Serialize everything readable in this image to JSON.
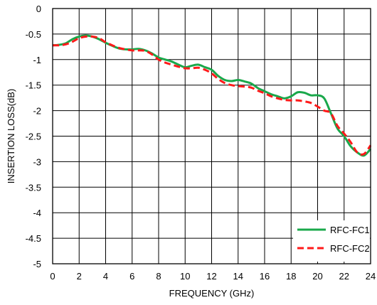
{
  "chart_data": {
    "type": "line",
    "xlabel": "FREQUENCY (GHz)",
    "ylabel": "INSERTION LOSS(dB)",
    "xlim": [
      0,
      24
    ],
    "ylim": [
      -5,
      0
    ],
    "xticks": [
      0,
      2,
      4,
      6,
      8,
      10,
      12,
      14,
      16,
      18,
      20,
      22,
      24
    ],
    "yticks": [
      0,
      -0.5,
      -1,
      -1.5,
      -2,
      -2.5,
      -3,
      -3.5,
      -4,
      -4.5,
      -5
    ],
    "ytick_labels": [
      "0",
      "-0.5",
      "-1",
      "-1.5",
      "-2",
      "-2.5",
      "-3",
      "-3.5",
      "-4",
      "-4.5",
      "-5"
    ],
    "grid": true,
    "legend_position": "bottom-right",
    "series": [
      {
        "name": "RFC-FC1",
        "color": "#1aa84b",
        "style": "solid",
        "x": [
          0,
          0.5,
          1,
          1.5,
          2,
          2.5,
          3,
          3.5,
          4,
          4.5,
          5,
          5.5,
          6,
          6.5,
          7,
          7.5,
          8,
          8.5,
          9,
          9.5,
          10,
          10.5,
          11,
          11.5,
          12,
          12.5,
          13,
          13.5,
          14,
          14.5,
          15,
          15.5,
          16,
          16.5,
          17,
          17.5,
          18,
          18.5,
          19,
          19.5,
          20,
          20.5,
          21,
          21.5,
          22,
          22.5,
          23,
          23.5,
          24
        ],
        "y": [
          -0.72,
          -0.71,
          -0.68,
          -0.6,
          -0.55,
          -0.53,
          -0.55,
          -0.6,
          -0.67,
          -0.73,
          -0.78,
          -0.8,
          -0.8,
          -0.79,
          -0.82,
          -0.88,
          -0.96,
          -1.0,
          -1.04,
          -1.1,
          -1.15,
          -1.12,
          -1.1,
          -1.15,
          -1.2,
          -1.32,
          -1.4,
          -1.42,
          -1.4,
          -1.43,
          -1.47,
          -1.56,
          -1.62,
          -1.68,
          -1.72,
          -1.76,
          -1.72,
          -1.64,
          -1.65,
          -1.7,
          -1.7,
          -1.76,
          -2.05,
          -2.35,
          -2.5,
          -2.7,
          -2.82,
          -2.88,
          -2.75
        ]
      },
      {
        "name": "RFC-FC2",
        "color": "#ff1a1a",
        "style": "dashed",
        "x": [
          0,
          0.5,
          1,
          1.5,
          2,
          2.5,
          3,
          3.5,
          4,
          4.5,
          5,
          5.5,
          6,
          6.5,
          7,
          7.5,
          8,
          8.5,
          9,
          9.5,
          10,
          10.5,
          11,
          11.5,
          12,
          12.5,
          13,
          13.5,
          14,
          14.5,
          15,
          15.5,
          16,
          16.5,
          17,
          17.5,
          18,
          18.5,
          19,
          19.5,
          20,
          20.5,
          21,
          21.5,
          22,
          22.5,
          23,
          23.5,
          24
        ],
        "y": [
          -0.72,
          -0.72,
          -0.7,
          -0.65,
          -0.58,
          -0.55,
          -0.55,
          -0.58,
          -0.66,
          -0.72,
          -0.77,
          -0.8,
          -0.82,
          -0.82,
          -0.83,
          -0.9,
          -1.0,
          -1.06,
          -1.1,
          -1.14,
          -1.17,
          -1.17,
          -1.16,
          -1.2,
          -1.27,
          -1.38,
          -1.46,
          -1.5,
          -1.52,
          -1.53,
          -1.55,
          -1.61,
          -1.66,
          -1.72,
          -1.76,
          -1.79,
          -1.8,
          -1.8,
          -1.82,
          -1.85,
          -1.92,
          -2.0,
          -2.05,
          -2.3,
          -2.45,
          -2.62,
          -2.82,
          -2.85,
          -2.68
        ]
      }
    ]
  }
}
